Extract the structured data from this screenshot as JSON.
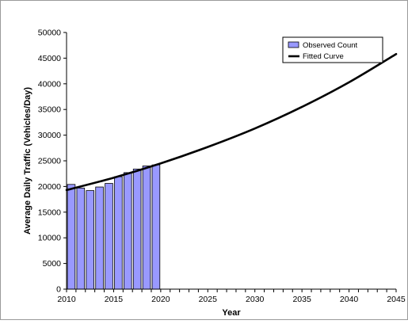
{
  "chart_data": {
    "type": "bar",
    "title": "",
    "xlabel": "Year",
    "ylabel": "Average Daily Traffic (Vehicles/Day)",
    "xlim": [
      2010,
      2045
    ],
    "ylim": [
      0,
      50000
    ],
    "x_ticks": [
      2010,
      2015,
      2020,
      2025,
      2030,
      2035,
      2040,
      2045
    ],
    "y_ticks": [
      0,
      5000,
      10000,
      15000,
      20000,
      25000,
      30000,
      35000,
      40000,
      45000,
      50000
    ],
    "grid": false,
    "legend_position": "top-right",
    "series": [
      {
        "name": "Observed Count",
        "type": "bar",
        "color": "#9999FF",
        "x": [
          2010,
          2011,
          2012,
          2013,
          2014,
          2015,
          2016,
          2017,
          2018,
          2019
        ],
        "values": [
          20400,
          19700,
          19200,
          19900,
          20600,
          21900,
          22700,
          23400,
          24000,
          24200
        ]
      },
      {
        "name": "Fitted Curve",
        "type": "line",
        "color": "#000000",
        "x": [
          2010,
          2015,
          2020,
          2025,
          2030,
          2035,
          2040,
          2045
        ],
        "values": [
          19300,
          21700,
          24500,
          27700,
          31300,
          35500,
          40300,
          45800
        ]
      }
    ]
  }
}
